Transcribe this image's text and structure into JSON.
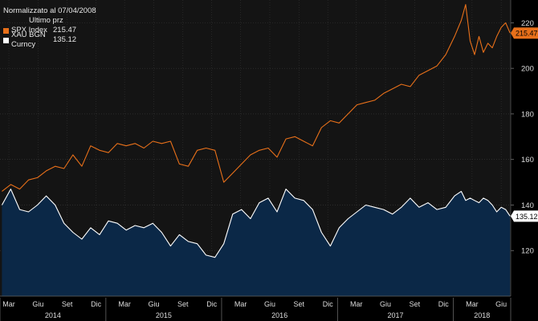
{
  "legend": {
    "title": "Normalizzato al 07/04/2008",
    "subtitle": "Ultimo prz",
    "entries": [
      {
        "name": "SPX Index",
        "value": "215.47",
        "color": "#e8701a"
      },
      {
        "name": "XAU BGN Curncy",
        "value": "135.12",
        "color": "#ffffff"
      }
    ]
  },
  "chart_data": {
    "type": "line",
    "x_start": "2014-02",
    "x_end": "2018-06",
    "ylim": [
      100,
      230
    ],
    "yticks": [
      120,
      140,
      160,
      180,
      200,
      220
    ],
    "month_ticks": [
      "Mar",
      "Giu",
      "Set",
      "Dic",
      "Mar",
      "Giu",
      "Set",
      "Dic",
      "Mar",
      "Giu",
      "Set",
      "Dic",
      "Mar",
      "Giu",
      "Set",
      "Dic",
      "Mar",
      "Giu"
    ],
    "year_labels": [
      "2014",
      "2015",
      "2016",
      "2017",
      "2018"
    ],
    "grid": true,
    "series": [
      {
        "name": "SPX Index",
        "color": "#e8701a",
        "last_label": "215.47",
        "x": [
          "2014-02-07",
          "2014-03-07",
          "2014-04-04",
          "2014-05-02",
          "2014-05-30",
          "2014-06-27",
          "2014-07-25",
          "2014-08-22",
          "2014-09-19",
          "2014-10-17",
          "2014-11-14",
          "2014-12-12",
          "2015-01-09",
          "2015-02-06",
          "2015-03-06",
          "2015-04-03",
          "2015-05-01",
          "2015-05-29",
          "2015-06-26",
          "2015-07-24",
          "2015-08-21",
          "2015-09-18",
          "2015-10-16",
          "2015-11-13",
          "2015-12-11",
          "2016-01-08",
          "2016-02-05",
          "2016-03-04",
          "2016-04-01",
          "2016-04-29",
          "2016-05-27",
          "2016-06-24",
          "2016-07-22",
          "2016-08-19",
          "2016-09-16",
          "2016-10-14",
          "2016-11-11",
          "2016-12-09",
          "2017-01-06",
          "2017-02-03",
          "2017-03-03",
          "2017-03-31",
          "2017-04-28",
          "2017-05-26",
          "2017-06-23",
          "2017-07-21",
          "2017-08-18",
          "2017-09-15",
          "2017-10-13",
          "2017-11-10",
          "2017-12-08",
          "2018-01-05",
          "2018-01-26",
          "2018-02-09",
          "2018-02-23",
          "2018-03-09",
          "2018-03-23",
          "2018-04-06",
          "2018-04-20",
          "2018-05-04",
          "2018-05-18",
          "2018-06-01",
          "2018-06-15",
          "2018-06-29"
        ],
        "y": [
          146,
          149,
          147,
          151,
          152,
          155,
          157,
          156,
          162,
          157,
          166,
          164,
          163,
          167,
          166,
          167,
          165,
          168,
          167,
          168,
          158,
          157,
          164,
          165,
          164,
          150,
          154,
          158,
          162,
          164,
          165,
          161,
          169,
          170,
          168,
          166,
          174,
          177,
          176,
          180,
          184,
          185,
          186,
          189,
          191,
          193,
          192,
          197,
          199,
          201,
          206,
          214,
          221,
          228,
          212,
          206,
          214,
          207,
          211,
          209,
          214,
          218,
          220,
          215.47
        ]
      },
      {
        "name": "XAU BGN Curncy",
        "color": "#ffffff",
        "fill": "#0b2847",
        "last_label": "135.12",
        "x": [
          "2014-02-07",
          "2014-03-07",
          "2014-04-04",
          "2014-05-02",
          "2014-05-30",
          "2014-06-27",
          "2014-07-25",
          "2014-08-22",
          "2014-09-19",
          "2014-10-17",
          "2014-11-14",
          "2014-12-12",
          "2015-01-09",
          "2015-02-06",
          "2015-03-06",
          "2015-04-03",
          "2015-05-01",
          "2015-05-29",
          "2015-06-26",
          "2015-07-24",
          "2015-08-21",
          "2015-09-18",
          "2015-10-16",
          "2015-11-13",
          "2015-12-11",
          "2016-01-08",
          "2016-02-05",
          "2016-03-04",
          "2016-04-01",
          "2016-04-29",
          "2016-05-27",
          "2016-06-24",
          "2016-07-22",
          "2016-08-19",
          "2016-09-16",
          "2016-10-14",
          "2016-11-11",
          "2016-12-09",
          "2017-01-06",
          "2017-02-03",
          "2017-03-03",
          "2017-03-31",
          "2017-04-28",
          "2017-05-26",
          "2017-06-23",
          "2017-07-21",
          "2017-08-18",
          "2017-09-15",
          "2017-10-13",
          "2017-11-10",
          "2017-12-08",
          "2018-01-05",
          "2018-01-26",
          "2018-02-09",
          "2018-02-23",
          "2018-03-09",
          "2018-03-23",
          "2018-04-06",
          "2018-04-20",
          "2018-05-04",
          "2018-05-18",
          "2018-06-01",
          "2018-06-15",
          "2018-06-29"
        ],
        "y": [
          140,
          147,
          138,
          137,
          140,
          144,
          140,
          132,
          128,
          125,
          130,
          127,
          133,
          132,
          129,
          131,
          130,
          132,
          128,
          122,
          127,
          124,
          123,
          118,
          117,
          123,
          136,
          138,
          134,
          141,
          143,
          137,
          147,
          143,
          142,
          138,
          128,
          122,
          130,
          134,
          137,
          140,
          139,
          138,
          136,
          139,
          143,
          139,
          141,
          138,
          139,
          144,
          146,
          142,
          143,
          142,
          141,
          143,
          142,
          140,
          137,
          139,
          138,
          135.12
        ]
      }
    ]
  }
}
